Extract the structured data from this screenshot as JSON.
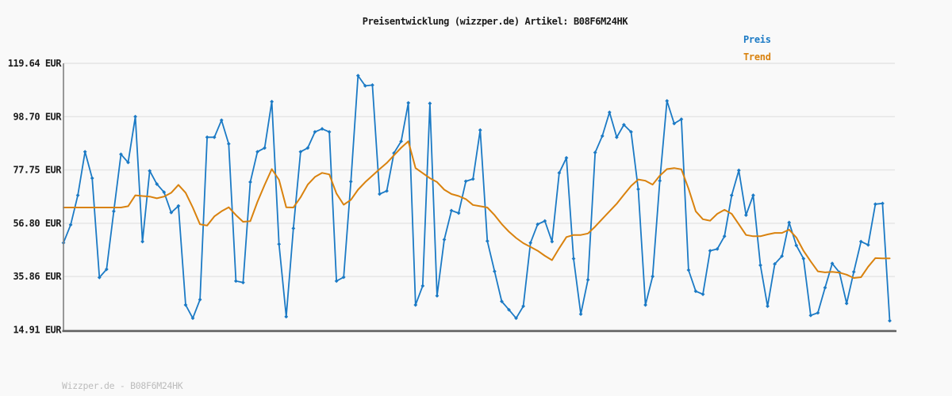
{
  "page": {
    "background": "#f9f9f9",
    "title": "Preisentwicklung (wizzper.de) Artikel: B08F6M24HK",
    "footer": "Wizzper.de - B08F6M24HK"
  },
  "legend": {
    "position": "top-right",
    "items": [
      {
        "label": "Preis",
        "color": "#1b7ac5"
      },
      {
        "label": "Trend",
        "color": "#d9820e"
      }
    ]
  },
  "colors": {
    "background": "#f9f9f9",
    "grid": "#e4e4e4",
    "axis_left": "#808080",
    "axis_bottom": "#606060",
    "tick_text": "#1a1a1a",
    "title_text": "#1a1a1a",
    "footer_text": "#bcbcbc",
    "preis_line": "#1b7ac5",
    "trend_line": "#d9820e"
  },
  "chart_data": {
    "type": "line",
    "title": "Preisentwicklung (wizzper.de) Artikel: B08F6M24HK",
    "xlabel": "",
    "ylabel": "",
    "grid": true,
    "legend_position": "top-right",
    "x_ticks": [],
    "ylim": [
      14.91,
      119.64
    ],
    "y_ticks": [
      {
        "value": 119.64,
        "label": "119.64 EUR"
      },
      {
        "value": 98.7,
        "label": "98.70 EUR"
      },
      {
        "value": 77.75,
        "label": "77.75 EUR"
      },
      {
        "value": 56.8,
        "label": "56.80 EUR"
      },
      {
        "value": 35.86,
        "label": "35.86 EUR"
      },
      {
        "value": 14.91,
        "label": "14.91 EUR"
      }
    ],
    "series": [
      {
        "name": "Preis",
        "color": "#1b7ac5",
        "marker": true,
        "values": [
          49.1,
          56.2,
          67.8,
          84.9,
          74.5,
          35.5,
          38.7,
          61.5,
          83.9,
          80.7,
          98.7,
          49.6,
          77.4,
          72.2,
          69.0,
          61.0,
          63.6,
          24.7,
          19.5,
          26.8,
          90.6,
          90.6,
          97.3,
          88.0,
          34.1,
          33.5,
          73.0,
          84.9,
          86.4,
          104.6,
          48.6,
          20.1,
          54.8,
          84.9,
          86.4,
          92.7,
          93.9,
          92.7,
          34.1,
          35.6,
          73.2,
          114.8,
          110.8,
          111.1,
          68.3,
          69.5,
          84.4,
          89.0,
          104.1,
          24.7,
          32.2,
          103.9,
          28.3,
          50.4,
          61.8,
          60.8,
          73.3,
          74.2,
          93.4,
          49.8,
          37.9,
          26.1,
          22.8,
          19.5,
          24.2,
          49.1,
          56.4,
          57.7,
          49.6,
          76.6,
          82.5,
          42.9,
          21.1,
          34.6,
          84.6,
          91.1,
          100.4,
          90.6,
          95.5,
          92.7,
          70.2,
          24.7,
          35.9,
          73.5,
          104.9,
          96.0,
          97.7,
          38.4,
          30.1,
          28.9,
          46.0,
          46.7,
          51.7,
          67.8,
          77.6,
          60.0,
          67.8,
          40.3,
          24.2,
          40.8,
          43.9,
          57.1,
          48.1,
          42.9,
          20.6,
          21.6,
          31.5,
          41.0,
          37.5,
          25.3,
          37.7,
          49.6,
          48.3,
          64.3,
          64.6,
          18.5
        ]
      },
      {
        "name": "Trend",
        "color": "#d9820e",
        "marker": false,
        "values": [
          63.0,
          63.0,
          63.0,
          63.0,
          63.0,
          63.0,
          63.0,
          63.0,
          63.0,
          63.5,
          67.8,
          67.5,
          67.3,
          66.6,
          67.3,
          68.8,
          71.9,
          68.8,
          63.0,
          56.4,
          55.9,
          59.5,
          61.5,
          63.1,
          60.0,
          57.4,
          57.6,
          65.2,
          71.9,
          78.1,
          73.9,
          63.1,
          63.0,
          67.0,
          72.0,
          75.0,
          76.6,
          76.0,
          68.5,
          64.1,
          66.0,
          70.0,
          73.0,
          75.5,
          78.1,
          80.5,
          83.5,
          86.5,
          89.0,
          78.5,
          76.5,
          74.5,
          73.0,
          70.0,
          68.3,
          67.5,
          66.3,
          64.0,
          63.5,
          63.0,
          60.0,
          56.5,
          53.5,
          51.0,
          49.0,
          47.5,
          46.0,
          44.0,
          42.3,
          47.0,
          51.4,
          52.2,
          52.2,
          52.8,
          55.5,
          58.5,
          61.5,
          64.5,
          68.0,
          71.5,
          74.0,
          73.5,
          72.0,
          75.5,
          78.1,
          78.5,
          78.0,
          70.4,
          61.5,
          58.4,
          57.8,
          60.5,
          62.1,
          60.5,
          56.4,
          52.2,
          51.7,
          51.7,
          52.4,
          53.0,
          53.0,
          54.3,
          51.2,
          46.0,
          41.8,
          37.9,
          37.5,
          37.7,
          37.4,
          36.6,
          35.3,
          35.6,
          39.7,
          43.1,
          43.0,
          43.0
        ]
      }
    ]
  }
}
